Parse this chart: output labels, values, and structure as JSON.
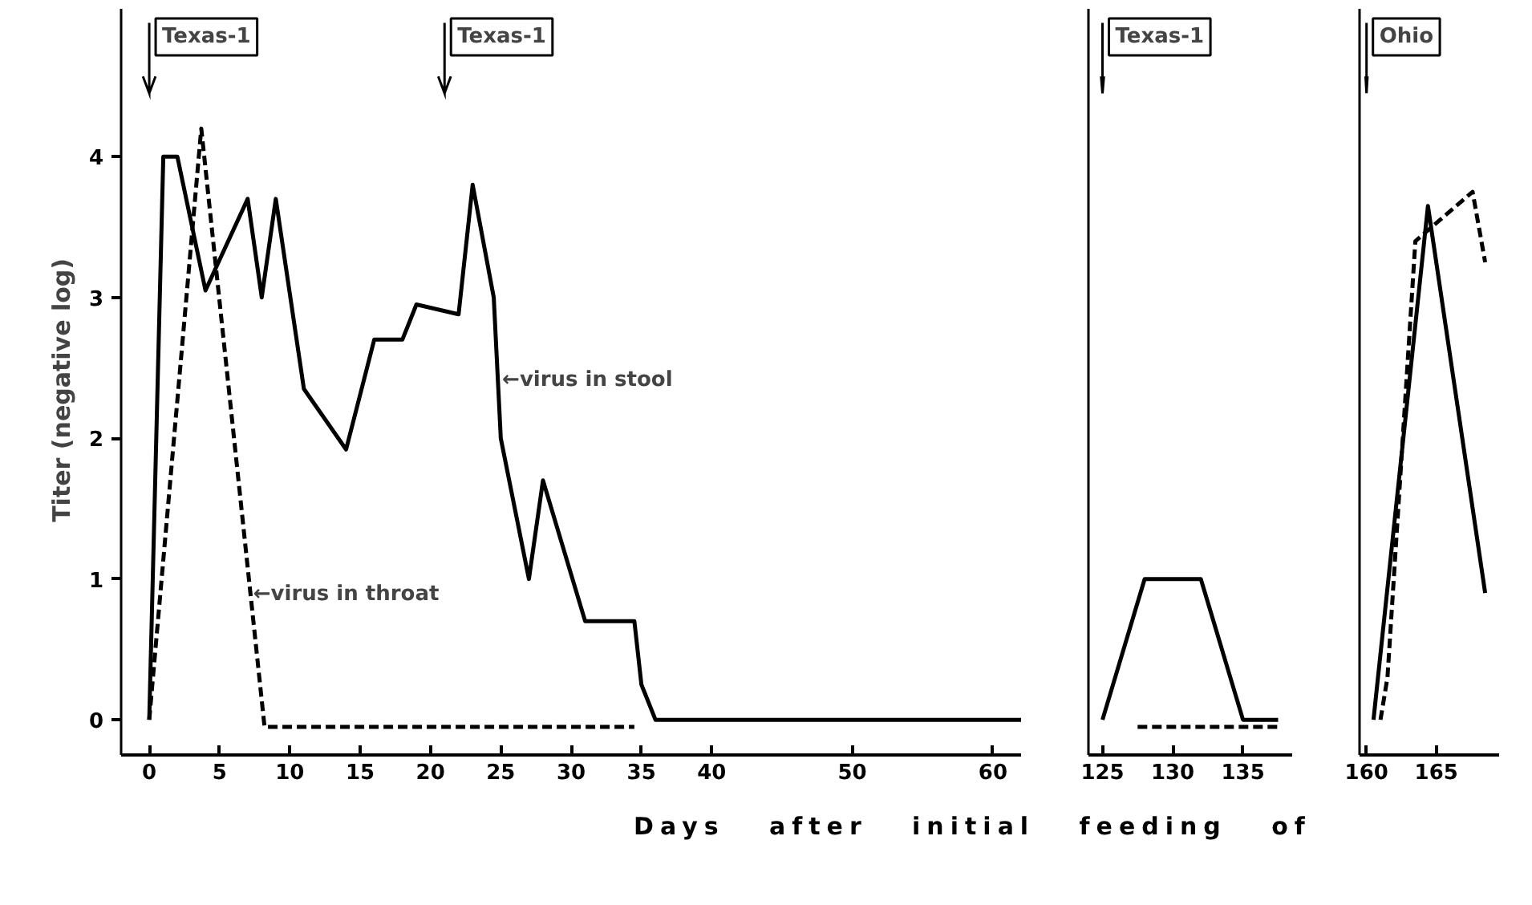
{
  "chart_data": [
    {
      "type": "line",
      "ylabel": "Titer   (negative log)",
      "xlim": [
        -2,
        62
      ],
      "xticks": [
        0,
        5,
        10,
        15,
        20,
        25,
        30,
        35,
        40,
        50,
        60
      ],
      "ylim": [
        -0.25,
        5.05
      ],
      "yticks": [
        0,
        1,
        2,
        3,
        4
      ],
      "series": [
        {
          "color": "#000000",
          "line_style": "solid",
          "x": [
            0,
            1,
            2,
            4,
            7,
            8,
            9,
            11,
            14,
            16,
            18,
            19,
            22,
            23,
            24.5,
            25,
            27,
            28,
            31,
            34.5,
            35,
            36,
            62
          ],
          "values": [
            0,
            4.0,
            4.0,
            3.05,
            3.7,
            3.0,
            3.7,
            2.35,
            1.92,
            2.7,
            2.7,
            2.95,
            2.88,
            3.8,
            3.0,
            2.0,
            1.0,
            1.7,
            0.7,
            0.7,
            0.25,
            0,
            0
          ]
        },
        {
          "color": "#000000",
          "line_style": "dashed",
          "x": [
            0,
            3.7,
            8.2,
            34.5
          ],
          "values": [
            0,
            4.2,
            -0.05,
            -0.05
          ]
        }
      ],
      "ref_lines": [
        {
          "axis": "x",
          "value": 0,
          "label": "Texas-1"
        },
        {
          "axis": "x",
          "value": 21,
          "label": "Texas-1"
        }
      ],
      "annotations": [
        {
          "text": "←virus in stool",
          "x": 25.1,
          "y": 2.41
        },
        {
          "text": "←virus in throat",
          "x": 7.4,
          "y": 0.89
        }
      ]
    },
    {
      "type": "line",
      "xlabel": "Days   after   initial   feeding   of",
      "xlim": [
        124,
        138.5
      ],
      "xticks": [
        125,
        130,
        135
      ],
      "ylim": [
        -0.25,
        5.05
      ],
      "yticks": [
        0,
        1,
        2,
        3,
        4
      ],
      "tick_labels": "x",
      "series": [
        {
          "color": "#000000",
          "line_style": "solid",
          "x": [
            125,
            128,
            132,
            135,
            137.5
          ],
          "values": [
            0,
            1.0,
            1.0,
            0,
            0
          ]
        },
        {
          "color": "#000000",
          "line_style": "dashed",
          "x": [
            127.5,
            137.5
          ],
          "values": [
            -0.05,
            -0.05
          ]
        }
      ],
      "ref_lines": [
        {
          "axis": "x",
          "value": 125,
          "label": "Texas-1"
        }
      ]
    },
    {
      "type": "line",
      "xlim": [
        159.5,
        169.5
      ],
      "xticks": [
        160,
        165
      ],
      "ylim": [
        -0.25,
        5.05
      ],
      "yticks": [
        0,
        1,
        2,
        3,
        4
      ],
      "tick_labels": "x",
      "series": [
        {
          "color": "#000000",
          "line_style": "solid",
          "x": [
            160.5,
            164.4,
            168.5
          ],
          "values": [
            0,
            3.65,
            0.9
          ]
        },
        {
          "color": "#000000",
          "line_style": "dashed",
          "x": [
            161,
            161.5,
            163.5,
            167.6,
            168.5
          ],
          "values": [
            0,
            0.3,
            3.4,
            3.75,
            3.25
          ]
        }
      ],
      "ref_lines": [
        {
          "axis": "x",
          "value": 160,
          "label": "Ohio"
        }
      ]
    }
  ]
}
